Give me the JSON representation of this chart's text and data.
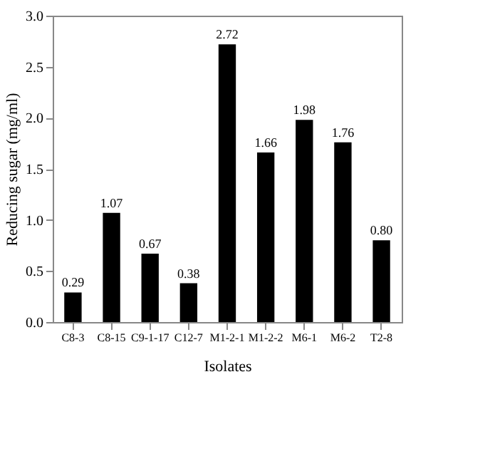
{
  "chart_data": {
    "type": "bar",
    "xlabel": "Isolates",
    "ylabel": "Reducing sugar (mg/ml)",
    "categories": [
      "C8-3",
      "C8-15",
      "C9-1-17",
      "C12-7",
      "M1-2-1",
      "M1-2-2",
      "M6-1",
      "M6-2",
      "T2-8"
    ],
    "values": [
      0.29,
      1.07,
      0.67,
      0.38,
      2.72,
      1.66,
      1.98,
      1.76,
      0.8
    ],
    "value_labels": [
      "0.29",
      "1.07",
      "0.67",
      "0.38",
      "2.72",
      "1.66",
      "1.98",
      "1.76",
      "0.80"
    ],
    "color": "#000000",
    "ylim": [
      0,
      3
    ],
    "yticks": [
      {
        "value": 0,
        "label": "0.0"
      },
      0.5,
      {
        "value": 1,
        "label": "1.0"
      },
      1.5,
      {
        "value": 2,
        "label": "2.0"
      },
      2.5,
      {
        "value": 3,
        "label": "3.0"
      }
    ],
    "grid": false
  }
}
